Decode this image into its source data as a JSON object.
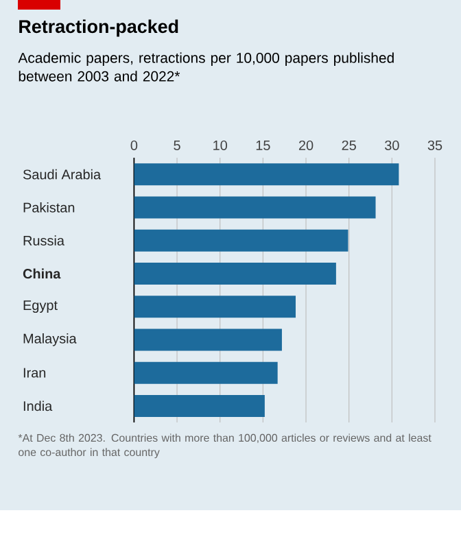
{
  "chart_data": {
    "type": "bar",
    "orientation": "horizontal",
    "title": "Retraction-packed",
    "subtitle": "Academic papers, retractions per 10,000 papers published between 2003 and 2022*",
    "categories": [
      "Saudi Arabia",
      "Pakistan",
      "Russia",
      "**China**",
      "Egypt",
      "Malaysia",
      "Iran",
      "India"
    ],
    "values": [
      30.8,
      28.1,
      24.9,
      23.5,
      18.8,
      17.2,
      16.7,
      15.2
    ],
    "color": "#1d6b9c",
    "xlim": [
      0,
      35
    ],
    "xticks": [
      0,
      5,
      10,
      15,
      20,
      25,
      30,
      35
    ],
    "grid": "x",
    "annotations": [
      "*At Dec 8th 2023. Countries with more than 100,000 articles or reviews and at least one co-author in that country"
    ]
  }
}
